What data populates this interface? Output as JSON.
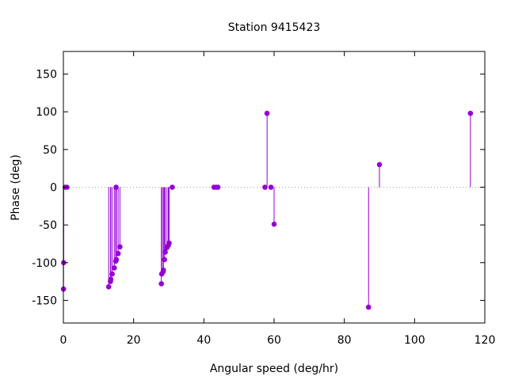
{
  "chart_data": {
    "type": "scatter",
    "style": "impulses-with-points",
    "title": "Station 9415423",
    "xlabel": "Angular speed (deg/hr)",
    "ylabel": "Phase (deg)",
    "xlim": [
      0,
      120
    ],
    "ylim": [
      -180,
      180
    ],
    "xticks": [
      0,
      20,
      40,
      60,
      80,
      100,
      120
    ],
    "yticks": [
      -150,
      -100,
      -50,
      0,
      50,
      100,
      150
    ],
    "xtick_labels": [
      "0",
      "20",
      "40",
      "60",
      "80",
      "100",
      "120"
    ],
    "ytick_labels": [
      "-150",
      "-100",
      "-50",
      "0",
      "50",
      "100",
      "150"
    ],
    "zero_line": true,
    "grid": false,
    "color": "#9400d3",
    "points": [
      {
        "x": 0.04,
        "y": -135
      },
      {
        "x": 0.08,
        "y": -100
      },
      {
        "x": 0.5,
        "y": 0
      },
      {
        "x": 1.0,
        "y": 0
      },
      {
        "x": 12.9,
        "y": -132
      },
      {
        "x": 13.4,
        "y": -125
      },
      {
        "x": 13.5,
        "y": -122
      },
      {
        "x": 13.9,
        "y": -115
      },
      {
        "x": 14.5,
        "y": -107
      },
      {
        "x": 14.9,
        "y": -98
      },
      {
        "x": 15.0,
        "y": 0
      },
      {
        "x": 15.1,
        "y": -96
      },
      {
        "x": 15.6,
        "y": -88
      },
      {
        "x": 16.1,
        "y": -79
      },
      {
        "x": 27.9,
        "y": -128
      },
      {
        "x": 28.0,
        "y": -115
      },
      {
        "x": 28.4,
        "y": -112
      },
      {
        "x": 28.5,
        "y": -110
      },
      {
        "x": 28.8,
        "y": -96
      },
      {
        "x": 29.0,
        "y": -86
      },
      {
        "x": 29.5,
        "y": -80
      },
      {
        "x": 29.9,
        "y": -77
      },
      {
        "x": 30.1,
        "y": -74
      },
      {
        "x": 31.0,
        "y": 0
      },
      {
        "x": 42.9,
        "y": 0
      },
      {
        "x": 43.5,
        "y": 0
      },
      {
        "x": 44.0,
        "y": 0
      },
      {
        "x": 57.4,
        "y": 0
      },
      {
        "x": 58.0,
        "y": 98
      },
      {
        "x": 59.1,
        "y": 0
      },
      {
        "x": 60.0,
        "y": -49
      },
      {
        "x": 86.9,
        "y": -159
      },
      {
        "x": 90.0,
        "y": 30
      },
      {
        "x": 115.9,
        "y": 98
      }
    ]
  }
}
